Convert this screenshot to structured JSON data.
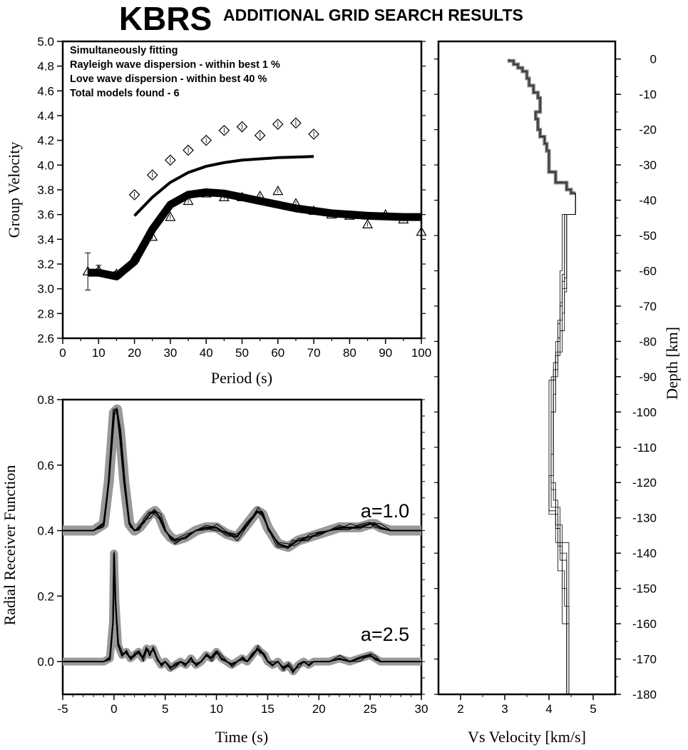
{
  "header": {
    "station": "KBRS",
    "subtitle": "ADDITIONAL GRID SEARCH RESULTS"
  },
  "colors": {
    "ink": "#000000",
    "observed_band": "#999999",
    "model_outline": "#777777",
    "background": "#ffffff"
  },
  "chart_data": [
    {
      "id": "dispersion",
      "type": "scatter",
      "xlabel": "Period (s)",
      "ylabel": "Group Velocity",
      "xlim": [
        0,
        100
      ],
      "ylim": [
        2.6,
        5.0
      ],
      "xticks": [
        "0",
        "10",
        "20",
        "30",
        "40",
        "50",
        "60",
        "70",
        "80",
        "90",
        "100"
      ],
      "yticks": [
        "2.6",
        "2.8",
        "3.0",
        "3.2",
        "3.4",
        "3.6",
        "3.8",
        "4.0",
        "4.2",
        "4.4",
        "4.6",
        "4.8",
        "5.0"
      ],
      "annotations": [
        "Simultaneously fitting",
        "Rayleigh wave dispersion - within best 1 %",
        "Love wave dispersion - within best 40 %",
        "Total models found - 6"
      ],
      "series": [
        {
          "marker": "diamond",
          "x": [
            20,
            25,
            30,
            35,
            40,
            45,
            50,
            55,
            60,
            65,
            70
          ],
          "y": [
            3.76,
            3.92,
            4.04,
            4.12,
            4.2,
            4.28,
            4.31,
            4.24,
            4.33,
            4.34,
            4.25
          ]
        },
        {
          "marker": "triangle",
          "x": [
            7,
            10,
            15,
            20,
            25,
            30,
            35,
            40,
            45,
            50,
            55,
            60,
            65,
            70,
            75,
            80,
            85,
            90,
            95,
            100
          ],
          "y": [
            3.14,
            3.15,
            3.12,
            3.25,
            3.42,
            3.58,
            3.71,
            3.77,
            3.74,
            3.74,
            3.75,
            3.79,
            3.69,
            3.63,
            3.6,
            3.59,
            3.52,
            3.6,
            3.56,
            3.46
          ],
          "err": [
            0.15,
            0.04,
            0.02,
            0,
            0,
            0,
            0,
            0,
            0,
            0,
            0,
            0,
            0,
            0,
            0,
            0,
            0,
            0,
            0,
            0
          ]
        },
        {
          "line": "love_model",
          "x": [
            20,
            25,
            30,
            35,
            40,
            45,
            50,
            55,
            60,
            65,
            70
          ],
          "y": [
            3.59,
            3.74,
            3.86,
            3.94,
            3.99,
            4.02,
            4.04,
            4.05,
            4.06,
            4.065,
            4.07
          ]
        },
        {
          "line": "rayleigh_model",
          "x": [
            7,
            10,
            15,
            20,
            25,
            30,
            35,
            40,
            45,
            50,
            55,
            60,
            65,
            70,
            75,
            80,
            85,
            90,
            95,
            100
          ],
          "y": [
            3.13,
            3.13,
            3.1,
            3.22,
            3.48,
            3.68,
            3.76,
            3.78,
            3.77,
            3.74,
            3.71,
            3.68,
            3.65,
            3.63,
            3.61,
            3.6,
            3.59,
            3.585,
            3.58,
            3.58
          ]
        }
      ]
    },
    {
      "id": "receiver_functions",
      "type": "line",
      "xlabel": "Time (s)",
      "ylabel": "Radial Receiver Function",
      "xlim": [
        -5,
        30
      ],
      "ylim": [
        -0.1,
        0.8
      ],
      "xticks": [
        "-5",
        "0",
        "5",
        "10",
        "15",
        "20",
        "25",
        "30"
      ],
      "yticks": [
        "0.0",
        "0.2",
        "0.4",
        "0.6",
        "0.8"
      ],
      "labels": [
        "a=1.0",
        "a=2.5"
      ],
      "series": [
        {
          "label": "a=1.0",
          "baseline": 0.4,
          "x": [
            -5,
            -2,
            -1,
            -0.5,
            0,
            0.3,
            0.6,
            1,
            1.5,
            2,
            2.5,
            3,
            3.5,
            4,
            4.5,
            5,
            5.5,
            6,
            7,
            8,
            9,
            10,
            11,
            12,
            13,
            14,
            14.5,
            15,
            16,
            17,
            17.5,
            18,
            19,
            20,
            21,
            22,
            23,
            24,
            25,
            25.5,
            26,
            27,
            30
          ],
          "y": [
            0.4,
            0.4,
            0.42,
            0.55,
            0.76,
            0.77,
            0.7,
            0.55,
            0.42,
            0.4,
            0.41,
            0.43,
            0.45,
            0.46,
            0.44,
            0.4,
            0.38,
            0.37,
            0.38,
            0.4,
            0.41,
            0.41,
            0.39,
            0.38,
            0.42,
            0.46,
            0.45,
            0.41,
            0.36,
            0.35,
            0.36,
            0.37,
            0.38,
            0.39,
            0.4,
            0.41,
            0.41,
            0.41,
            0.42,
            0.42,
            0.41,
            0.4,
            0.4
          ]
        },
        {
          "label": "a=2.5",
          "baseline": 0.0,
          "x": [
            -5,
            -1,
            -0.4,
            -0.1,
            0,
            0.15,
            0.4,
            0.8,
            1.2,
            1.6,
            2,
            2.4,
            2.8,
            3.2,
            3.5,
            3.8,
            4.2,
            4.6,
            5,
            5.5,
            6,
            6.5,
            7,
            7.5,
            8,
            8.5,
            9,
            9.5,
            10,
            10.5,
            11,
            11.5,
            12,
            12.5,
            13,
            13.5,
            14,
            14.3,
            14.7,
            15,
            15.5,
            16,
            16.5,
            17,
            17.5,
            18,
            18.5,
            19,
            19.5,
            20,
            21,
            22,
            23,
            24,
            25,
            25.5,
            26,
            27,
            30
          ],
          "y": [
            0,
            0,
            0.01,
            0.12,
            0.33,
            0.18,
            0.05,
            0.02,
            0.03,
            0.01,
            0.02,
            0.03,
            0.01,
            0.04,
            0.02,
            0.04,
            0.01,
            -0.01,
            0.0,
            -0.02,
            -0.01,
            0.0,
            -0.01,
            0.01,
            -0.01,
            0.0,
            0.02,
            0.01,
            0.03,
            0.01,
            0.0,
            -0.01,
            0.0,
            0.01,
            0.0,
            0.02,
            0.04,
            0.03,
            0.02,
            0.0,
            -0.01,
            0.0,
            -0.02,
            -0.01,
            -0.03,
            -0.01,
            0.0,
            -0.01,
            0.0,
            0.0,
            0.0,
            0.01,
            0.0,
            0.01,
            0.02,
            0.01,
            0.0,
            0.0,
            0.0
          ]
        }
      ]
    },
    {
      "id": "velocity_models",
      "type": "line",
      "xlabel": "Vs Velocity [km/s]",
      "ylabel": "Depth [km]",
      "xlim": [
        1.5,
        5.5
      ],
      "ylim": [
        -180,
        5
      ],
      "xticks": [
        "2",
        "3",
        "4",
        "5"
      ],
      "yticks": [
        "0",
        "-10",
        "-20",
        "-30",
        "-40",
        "-50",
        "-60",
        "-70",
        "-80",
        "-90",
        "-100",
        "-110",
        "-120",
        "-130",
        "-140",
        "-150",
        "-160",
        "-170",
        "-180"
      ],
      "series": [
        {
          "style": "shallow_average",
          "points": [
            [
              3.1,
              0
            ],
            [
              3.1,
              -0.5
            ],
            [
              3.2,
              -0.5
            ],
            [
              3.2,
              -1.5
            ],
            [
              3.3,
              -1.5
            ],
            [
              3.3,
              -2.5
            ],
            [
              3.4,
              -2.5
            ],
            [
              3.4,
              -3.5
            ],
            [
              3.5,
              -3.5
            ],
            [
              3.5,
              -5.5
            ],
            [
              3.55,
              -5.5
            ],
            [
              3.55,
              -7.5
            ],
            [
              3.65,
              -7.5
            ],
            [
              3.65,
              -9.5
            ],
            [
              3.75,
              -9.5
            ],
            [
              3.75,
              -11
            ],
            [
              3.8,
              -11
            ],
            [
              3.8,
              -15
            ],
            [
              3.7,
              -15
            ],
            [
              3.7,
              -17
            ],
            [
              3.75,
              -17
            ],
            [
              3.75,
              -20
            ],
            [
              3.8,
              -20
            ],
            [
              3.8,
              -22
            ],
            [
              3.9,
              -22
            ],
            [
              3.9,
              -24
            ],
            [
              3.95,
              -24
            ],
            [
              3.95,
              -26
            ],
            [
              4.0,
              -26
            ],
            [
              4.0,
              -32
            ],
            [
              4.15,
              -32
            ],
            [
              4.15,
              -35
            ],
            [
              4.4,
              -35
            ],
            [
              4.4,
              -37
            ],
            [
              4.5,
              -37
            ],
            [
              4.5,
              -38
            ],
            [
              4.6,
              -38
            ]
          ]
        },
        {
          "style": "model",
          "points": [
            [
              4.6,
              -38
            ],
            [
              4.6,
              -44
            ],
            [
              4.35,
              -44
            ],
            [
              4.35,
              -61
            ],
            [
              4.3,
              -61
            ],
            [
              4.3,
              -69
            ],
            [
              4.25,
              -69
            ],
            [
              4.25,
              -79
            ],
            [
              4.2,
              -79
            ],
            [
              4.2,
              -90
            ],
            [
              4.05,
              -90
            ],
            [
              4.05,
              -120
            ],
            [
              4.15,
              -120
            ],
            [
              4.15,
              -133
            ],
            [
              4.25,
              -133
            ],
            [
              4.25,
              -140
            ],
            [
              4.4,
              -140
            ],
            [
              4.4,
              -180
            ]
          ]
        },
        {
          "style": "model",
          "points": [
            [
              4.6,
              -38
            ],
            [
              4.6,
              -44
            ],
            [
              4.4,
              -44
            ],
            [
              4.4,
              -62
            ],
            [
              4.35,
              -62
            ],
            [
              4.35,
              -72
            ],
            [
              4.3,
              -72
            ],
            [
              4.3,
              -83
            ],
            [
              4.15,
              -83
            ],
            [
              4.15,
              -95
            ],
            [
              4.1,
              -95
            ],
            [
              4.1,
              -125
            ],
            [
              4.2,
              -125
            ],
            [
              4.2,
              -138
            ],
            [
              4.3,
              -138
            ],
            [
              4.3,
              -160
            ],
            [
              4.45,
              -160
            ],
            [
              4.45,
              -180
            ]
          ]
        },
        {
          "style": "model",
          "points": [
            [
              4.6,
              -38
            ],
            [
              4.6,
              -44
            ],
            [
              4.3,
              -44
            ],
            [
              4.3,
              -60
            ],
            [
              4.25,
              -60
            ],
            [
              4.25,
              -75
            ],
            [
              4.2,
              -75
            ],
            [
              4.2,
              -86
            ],
            [
              4.1,
              -86
            ],
            [
              4.1,
              -118
            ],
            [
              4.0,
              -118
            ],
            [
              4.0,
              -129
            ],
            [
              4.2,
              -129
            ],
            [
              4.2,
              -145
            ],
            [
              4.35,
              -145
            ],
            [
              4.35,
              -155
            ],
            [
              4.45,
              -155
            ],
            [
              4.45,
              -180
            ]
          ]
        },
        {
          "style": "model",
          "points": [
            [
              4.6,
              -38
            ],
            [
              4.6,
              -44
            ],
            [
              4.4,
              -44
            ],
            [
              4.4,
              -65
            ],
            [
              4.3,
              -65
            ],
            [
              4.3,
              -70
            ],
            [
              4.25,
              -70
            ],
            [
              4.25,
              -80
            ],
            [
              4.15,
              -80
            ],
            [
              4.15,
              -100
            ],
            [
              4.05,
              -100
            ],
            [
              4.05,
              -122
            ],
            [
              4.15,
              -122
            ],
            [
              4.15,
              -132
            ],
            [
              4.3,
              -132
            ],
            [
              4.3,
              -150
            ],
            [
              4.4,
              -150
            ],
            [
              4.4,
              -180
            ]
          ]
        },
        {
          "style": "model",
          "points": [
            [
              4.6,
              -38
            ],
            [
              4.6,
              -44
            ],
            [
              4.35,
              -44
            ],
            [
              4.35,
              -63
            ],
            [
              4.3,
              -63
            ],
            [
              4.3,
              -74
            ],
            [
              4.2,
              -74
            ],
            [
              4.2,
              -88
            ],
            [
              4.1,
              -88
            ],
            [
              4.1,
              -112
            ],
            [
              4.05,
              -112
            ],
            [
              4.05,
              -127
            ],
            [
              4.25,
              -127
            ],
            [
              4.25,
              -142
            ],
            [
              4.4,
              -142
            ],
            [
              4.4,
              -180
            ]
          ]
        },
        {
          "style": "model",
          "points": [
            [
              4.6,
              -38
            ],
            [
              4.6,
              -44
            ],
            [
              4.4,
              -44
            ],
            [
              4.4,
              -66
            ],
            [
              4.35,
              -66
            ],
            [
              4.35,
              -77
            ],
            [
              4.25,
              -77
            ],
            [
              4.25,
              -84
            ],
            [
              4.15,
              -84
            ],
            [
              4.15,
              -91
            ],
            [
              4.0,
              -91
            ],
            [
              4.0,
              -128
            ],
            [
              4.15,
              -128
            ],
            [
              4.15,
              -137
            ],
            [
              4.45,
              -137
            ],
            [
              4.45,
              -180
            ]
          ]
        }
      ]
    }
  ]
}
